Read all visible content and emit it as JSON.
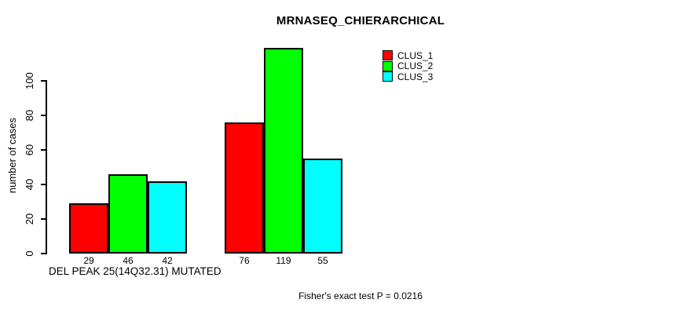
{
  "chart_data": {
    "type": "bar",
    "title": "MRNASEQ_CHIERARCHICAL",
    "xlabel": "DEL PEAK 25(14Q32.31) MUTATED",
    "ylabel": "number of cases",
    "annotation": "Fisher's exact test P = 0.0216",
    "y_ticks": [
      0,
      20,
      40,
      60,
      80,
      100
    ],
    "ylim": [
      0,
      120
    ],
    "grid": false,
    "legend_position": "top-right",
    "groups": [
      "group-1",
      "group-2"
    ],
    "series": [
      {
        "name": "CLUS_1",
        "color": "#ff0000",
        "values": [
          29,
          76
        ]
      },
      {
        "name": "CLUS_2",
        "color": "#00ff00",
        "values": [
          46,
          119
        ]
      },
      {
        "name": "CLUS_3",
        "color": "#00ffff",
        "values": [
          42,
          55
        ]
      }
    ],
    "bar_count_labels": [
      [
        "29",
        "46",
        "42"
      ],
      [
        "76",
        "119",
        "55"
      ]
    ]
  }
}
